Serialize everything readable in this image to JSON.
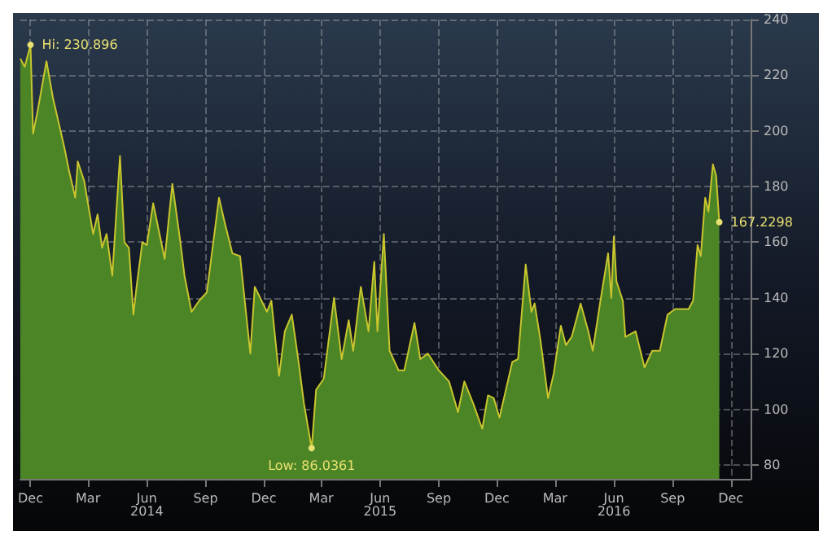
{
  "chart_data": {
    "type": "area",
    "x": [
      "2013-11-15",
      "2013-11-22",
      "2013-12-01",
      "2013-12-05",
      "2013-12-12",
      "2013-12-26",
      "2014-01-05",
      "2014-01-23",
      "2014-01-30",
      "2014-02-09",
      "2014-02-13",
      "2014-02-23",
      "2014-03-09",
      "2014-03-16",
      "2014-03-23",
      "2014-03-30",
      "2014-04-08",
      "2014-04-20",
      "2014-04-27",
      "2014-05-04",
      "2014-05-11",
      "2014-05-16",
      "2014-05-25",
      "2014-06-01",
      "2014-06-11",
      "2014-06-29",
      "2014-07-11",
      "2014-07-23",
      "2014-07-30",
      "2014-08-10",
      "2014-08-22",
      "2014-09-03",
      "2014-09-22",
      "2014-10-01",
      "2014-10-13",
      "2014-10-25",
      "2014-11-10",
      "2014-11-17",
      "2014-12-06",
      "2014-12-13",
      "2014-12-25",
      "2015-01-03",
      "2015-01-14",
      "2015-01-24",
      "2015-02-02",
      "2015-02-14",
      "2015-02-21",
      "2015-03-05",
      "2015-03-21",
      "2015-04-02",
      "2015-04-13",
      "2015-04-20",
      "2015-05-02",
      "2015-05-14",
      "2015-05-23",
      "2015-05-28",
      "2015-06-07",
      "2015-06-16",
      "2015-06-30",
      "2015-07-09",
      "2015-07-25",
      "2015-08-03",
      "2015-08-15",
      "2015-09-01",
      "2015-09-17",
      "2015-10-01",
      "2015-10-11",
      "2015-10-25",
      "2015-11-08",
      "2015-11-17",
      "2015-11-26",
      "2015-12-05",
      "2015-12-15",
      "2015-12-25",
      "2016-01-03",
      "2016-01-15",
      "2016-01-24",
      "2016-01-29",
      "2016-02-07",
      "2016-02-19",
      "2016-02-28",
      "2016-03-10",
      "2016-03-18",
      "2016-03-27",
      "2016-04-10",
      "2016-04-22",
      "2016-04-29",
      "2016-05-11",
      "2016-05-23",
      "2016-05-28",
      "2016-06-01",
      "2016-06-05",
      "2016-06-15",
      "2016-06-19",
      "2016-07-05",
      "2016-07-19",
      "2016-07-31",
      "2016-08-12",
      "2016-08-24",
      "2016-09-05",
      "2016-09-26",
      "2016-10-03",
      "2016-10-10",
      "2016-10-15",
      "2016-10-22",
      "2016-10-27",
      "2016-11-03",
      "2016-11-08",
      "2016-11-13"
    ],
    "series": [
      {
        "color": "#c9c52e",
        "values": [
          226,
          223,
          230.9,
          199,
          207,
          225,
          212,
          194,
          186,
          176,
          189,
          182,
          163,
          170,
          158,
          163,
          148,
          191,
          160,
          158,
          134,
          144,
          160,
          159,
          174,
          154,
          181,
          161,
          148,
          135,
          139,
          142,
          176,
          167,
          156,
          155,
          120,
          144,
          135,
          139,
          112,
          128,
          134,
          118,
          102,
          86.04,
          107,
          111,
          140,
          118,
          132,
          121,
          144,
          128,
          153,
          128,
          163,
          121,
          114,
          114,
          131,
          118,
          120,
          114,
          110,
          99,
          110,
          102,
          93,
          105,
          104,
          97,
          107,
          117,
          118,
          152,
          135,
          138,
          125,
          104,
          113,
          130,
          123,
          126,
          138,
          128,
          121,
          139,
          156,
          140,
          162,
          146,
          139,
          126,
          128,
          115,
          121,
          121,
          134,
          136,
          136,
          139,
          159,
          155,
          176,
          171,
          188,
          184,
          167.23
        ]
      }
    ],
    "ylim": [
      75,
      240
    ],
    "yticks": [
      80,
      100,
      120,
      140,
      160,
      180,
      200,
      220,
      240
    ],
    "xlim": [
      "2013-11-15",
      "2017-01-01"
    ],
    "xticks": [
      {
        "value": "2013-12-01",
        "label": "Dec"
      },
      {
        "value": "2014-03-01",
        "label": "Mar"
      },
      {
        "value": "2014-06-01",
        "label": "Jun\n2014"
      },
      {
        "value": "2014-09-01",
        "label": "Sep"
      },
      {
        "value": "2014-12-01",
        "label": "Dec"
      },
      {
        "value": "2015-03-01",
        "label": "Mar"
      },
      {
        "value": "2015-06-01",
        "label": "Jun\n2015"
      },
      {
        "value": "2015-09-01",
        "label": "Sep"
      },
      {
        "value": "2015-12-01",
        "label": "Dec"
      },
      {
        "value": "2016-03-01",
        "label": "Mar"
      },
      {
        "value": "2016-06-01",
        "label": "Jun\n2016"
      },
      {
        "value": "2016-09-01",
        "label": "Sep"
      },
      {
        "value": "2016-12-01",
        "label": "Dec"
      }
    ],
    "grid": true,
    "annotations": [
      {
        "text": "Hi: 230.896",
        "x": "2013-12-01",
        "y": 230.9
      },
      {
        "text": "Low: 86.0361",
        "x": "2015-02-14",
        "y": 86.04
      },
      {
        "text": "167.2298",
        "x": "2016-11-13",
        "y": 167.23
      }
    ]
  }
}
